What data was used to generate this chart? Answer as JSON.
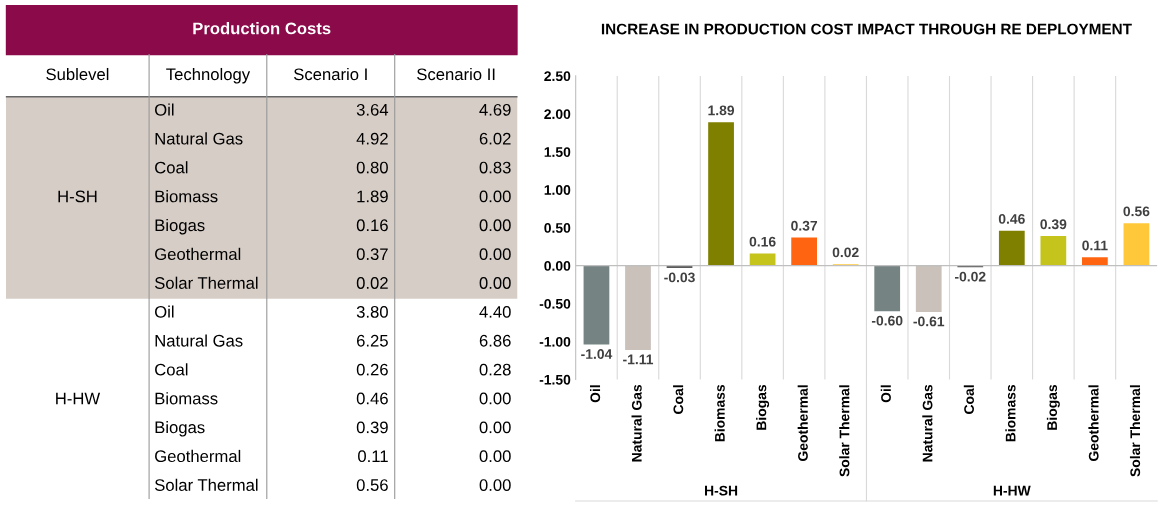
{
  "chart_data": [
    {
      "type": "other",
      "title": "Production Costs",
      "categories": [
        "Sublevel",
        "Technology",
        "Scenario I",
        "Scenario II"
      ],
      "y_categories": [
        "Oil",
        "Natural Gas",
        "Coal",
        "Biomass",
        "Biogas",
        "Geothermal",
        "Solar Thermal",
        "Oil",
        "Natural Gas",
        "Coal",
        "Biomass",
        "Biogas",
        "Geothermal",
        "Solar Thermal"
      ],
      "cell_labels": [
        [
          "3.64",
          "4.69"
        ],
        [
          "4.92",
          "6.02"
        ],
        [
          "0.80",
          "0.83"
        ],
        [
          "1.89",
          "0.00"
        ],
        [
          "0.16",
          "0.00"
        ],
        [
          "0.37",
          "0.00"
        ],
        [
          "0.02",
          "0.00"
        ],
        [
          "3.80",
          "4.40"
        ],
        [
          "6.25",
          "6.86"
        ],
        [
          "0.26",
          "0.28"
        ],
        [
          "0.46",
          "0.00"
        ],
        [
          "0.39",
          "0.00"
        ],
        [
          "0.11",
          "0.00"
        ],
        [
          "0.56",
          "0.00"
        ]
      ],
      "annotations": [
        "H-SH",
        "H-HW"
      ]
    },
    {
      "type": "bar",
      "title": "INCREASE IN PRODUCTION COST IMPACT THROUGH RE DEPLOYMENT",
      "categories": [
        "Oil",
        "Natural Gas",
        "Coal",
        "Biomass",
        "Biogas",
        "Geothermal",
        "Solar Thermal",
        "Oil",
        "Natural Gas",
        "Coal",
        "Biomass",
        "Biogas",
        "Geothermal",
        "Solar Thermal"
      ],
      "values": [
        -1.04,
        -1.11,
        -0.03,
        1.89,
        0.16,
        0.37,
        0.02,
        -0.6,
        -0.61,
        -0.02,
        0.46,
        0.39,
        0.11,
        0.56
      ],
      "colors": [
        "#768383",
        "#c9c1ba",
        "#5a5a5a",
        "#7f7f00",
        "#c4c41c",
        "#ff6410",
        "#ffc83a",
        "#768383",
        "#c9c1ba",
        "#5a5a5a",
        "#7f7f00",
        "#c4c41c",
        "#ff6410",
        "#ffc83a"
      ],
      "ylim": [
        -1.5,
        2.5
      ],
      "yticks": [
        {
          "value": -1.5,
          "label": "-1.50"
        },
        {
          "value": -1.0,
          "label": "-1.00"
        },
        {
          "value": -0.5,
          "label": "-0.50"
        },
        {
          "value": 0,
          "label": "0.00"
        },
        {
          "value": 0.5,
          "label": "0.50"
        },
        {
          "value": 1.0,
          "label": "1.00"
        },
        {
          "value": 1.5,
          "label": "1.50"
        },
        {
          "value": 2.0,
          "label": "2.00"
        },
        {
          "value": 2.5,
          "label": "2.50"
        }
      ],
      "value_labels": [
        "-1.04",
        "-1.11",
        "-0.03",
        "1.89",
        "0.16",
        "0.37",
        "0.02",
        "-0.60",
        "-0.61",
        "-0.02",
        "0.46",
        "0.39",
        "0.11",
        "0.56"
      ],
      "grid": "x",
      "annotations": [
        "H-SH",
        "H-HW"
      ]
    }
  ]
}
